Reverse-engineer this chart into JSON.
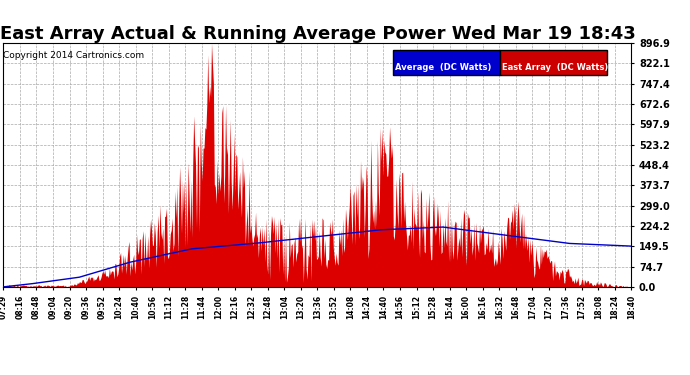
{
  "title": "East Array Actual & Running Average Power Wed Mar 19 18:43",
  "copyright": "Copyright 2014 Cartronics.com",
  "legend_avg_label": "Average  (DC Watts)",
  "legend_east_label": "East Array  (DC Watts)",
  "y_ticks": [
    0.0,
    74.7,
    149.5,
    224.2,
    299.0,
    373.7,
    448.4,
    523.2,
    597.9,
    672.6,
    747.4,
    822.1,
    896.9
  ],
  "y_max": 896.9,
  "x_tick_labels": [
    "07:29",
    "08:16",
    "08:48",
    "09:04",
    "09:20",
    "09:36",
    "09:52",
    "10:24",
    "10:40",
    "10:56",
    "11:12",
    "11:28",
    "11:44",
    "12:00",
    "12:16",
    "12:32",
    "12:48",
    "13:04",
    "13:20",
    "13:36",
    "13:52",
    "14:08",
    "14:24",
    "14:40",
    "14:56",
    "15:12",
    "15:28",
    "15:44",
    "16:00",
    "16:16",
    "16:32",
    "16:48",
    "17:04",
    "17:20",
    "17:36",
    "17:52",
    "18:08",
    "18:24",
    "18:40"
  ],
  "background_color": "#ffffff",
  "plot_bg_color": "#ffffff",
  "grid_color": "#aaaaaa",
  "bar_color": "#dd0000",
  "line_color": "#0000cc",
  "title_fontsize": 13,
  "copyright_fontsize": 7,
  "avg_legend_bg": "#0000cc",
  "east_legend_bg": "#cc0000"
}
